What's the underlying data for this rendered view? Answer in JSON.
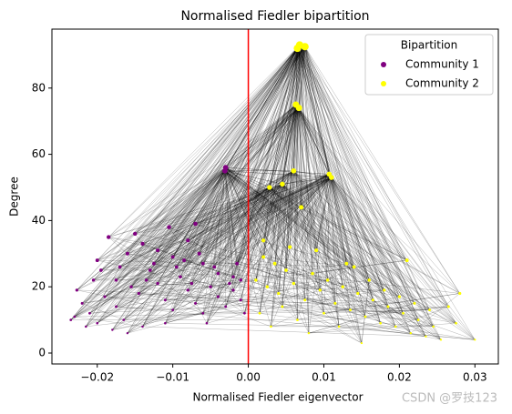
{
  "chart_data": {
    "type": "scatter",
    "title": "Normalised Fiedler bipartition",
    "x_label": "Normalised Fiedler eigenvector",
    "y_label": "Degree",
    "legend_title": "Bipartition",
    "legend_position": "upper right",
    "watermark": "CSDN @罗技123",
    "xlim": [
      -0.026,
      0.0331
    ],
    "ylim": [
      -3.3,
      97.8
    ],
    "xticks": [
      {
        "value": -0.02,
        "label": "−0.02"
      },
      {
        "value": -0.01,
        "label": "−0.01"
      },
      {
        "value": 0,
        "label": "0.00"
      },
      0.01,
      0.02,
      0.03
    ],
    "yticks": [
      0,
      20,
      40,
      60,
      80
    ],
    "reference_line": {
      "x": 0,
      "color": "#ff0000"
    },
    "edge_color": "#000000",
    "series": [
      {
        "name": "Community 1",
        "color": "#800080",
        "x": [
          -0.003,
          -0.0031,
          -0.0227,
          -0.023,
          -0.0185,
          -0.015,
          -0.0105,
          -0.007,
          -0.02,
          -0.0195,
          -0.0175,
          -0.016,
          -0.014,
          -0.012,
          -0.01,
          -0.008,
          -0.006,
          -0.004,
          -0.002,
          -0.001,
          -0.022,
          -0.021,
          -0.02,
          -0.019,
          -0.0175,
          -0.0165,
          -0.0155,
          -0.0145,
          -0.013,
          -0.012,
          -0.011,
          -0.01,
          -0.009,
          -0.008,
          -0.007,
          -0.006,
          -0.005,
          -0.004,
          -0.003,
          -0.002,
          -0.001,
          -0.0005,
          -0.0215,
          -0.018,
          -0.014,
          -0.011,
          -0.0085,
          -0.0065,
          -0.0045,
          -0.017,
          -0.0135,
          -0.0095,
          -0.0025,
          -0.0015,
          -0.0235,
          -0.0205,
          -0.0125,
          -0.0075,
          -0.0055,
          -0.016
        ],
        "values": [
          56,
          55,
          19,
          11,
          35,
          36,
          38,
          39,
          28,
          25,
          22,
          30,
          33,
          31,
          29,
          34,
          27,
          24,
          23,
          22,
          15,
          12,
          9,
          17,
          14,
          10,
          20,
          18,
          25,
          21,
          16,
          13,
          23,
          19,
          15,
          12,
          20,
          17,
          14,
          19,
          16,
          12,
          8,
          7,
          8,
          9,
          28,
          30,
          26,
          26,
          22,
          26,
          21,
          27,
          10,
          22,
          27,
          21,
          9,
          6
        ]
      },
      {
        "name": "Community 2",
        "color": "#ffff00",
        "x": [
          0.0068,
          0.0065,
          0.0075,
          0.0063,
          0.0067,
          0.006,
          0.0107,
          0.011,
          0.0028,
          0.0045,
          0.007,
          0.002,
          0.0055,
          0.009,
          0.013,
          0.021,
          0.001,
          0.0025,
          0.004,
          0.005,
          0.006,
          0.0075,
          0.0085,
          0.0095,
          0.0105,
          0.0115,
          0.0125,
          0.0135,
          0.0145,
          0.0155,
          0.0165,
          0.0175,
          0.0185,
          0.0195,
          0.0205,
          0.0215,
          0.0225,
          0.0235,
          0.0245,
          0.0255,
          0.0265,
          0.0275,
          0.028,
          0.03,
          0.0015,
          0.003,
          0.0045,
          0.0065,
          0.008,
          0.01,
          0.012,
          0.014,
          0.016,
          0.018,
          0.02,
          0.022,
          0.024,
          0.0035,
          0.002,
          0.015
        ],
        "values": [
          93,
          92,
          92.5,
          75,
          74,
          55,
          54,
          53,
          50,
          51,
          44,
          34,
          32,
          31,
          27,
          28,
          22,
          20,
          18,
          25,
          21,
          16,
          24,
          19,
          22,
          15,
          20,
          13,
          18,
          11,
          16,
          9,
          14,
          8,
          12,
          6,
          10,
          5,
          8,
          4,
          14,
          9,
          18,
          4,
          12,
          8,
          14,
          10,
          6,
          12,
          8,
          26,
          22,
          19,
          17,
          15,
          13,
          27,
          29,
          3
        ]
      }
    ]
  }
}
